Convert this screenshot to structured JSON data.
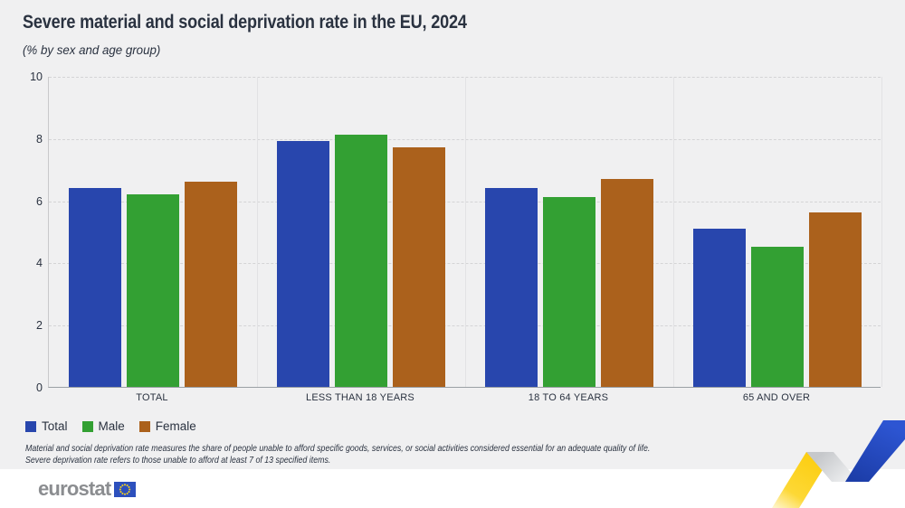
{
  "header": {
    "title": "Severe material and social deprivation rate in the EU, 2024",
    "subtitle": "(% by sex and age group)"
  },
  "chart_data": {
    "type": "bar",
    "categories": [
      "TOTAL",
      "LESS THAN 18 YEARS",
      "18 TO 64 YEARS",
      "65 AND OVER"
    ],
    "series": [
      {
        "name": "Total",
        "color": "#2846ad",
        "values": [
          6.4,
          7.9,
          6.4,
          5.1
        ]
      },
      {
        "name": "Male",
        "color": "#33a033",
        "values": [
          6.2,
          8.1,
          6.1,
          4.5
        ]
      },
      {
        "name": "Female",
        "color": "#ab611c",
        "values": [
          6.6,
          7.7,
          6.7,
          5.6
        ]
      }
    ],
    "ylim": [
      0,
      10
    ],
    "yticks": [
      0,
      2,
      4,
      6,
      8,
      10
    ],
    "grid": "horizontal dashed gridlines, light vertical category separators",
    "legend_position": "bottom-left",
    "xlabel": "",
    "ylabel": ""
  },
  "footnotes": {
    "line1": "Material and social deprivation rate measures the share of people unable to afford specific goods, services, or social activities considered essential for an adequate quality of life.",
    "line2": "Severe deprivation rate refers to those unable to afford at least 7 of 13 specified items."
  },
  "footer": {
    "logo_text": "eurostat",
    "eu_flag_icon": "eu-flag-icon"
  },
  "colors": {
    "background": "#f0f0f1",
    "footer_background": "#ffffff",
    "text": "#2a3240",
    "grid": "#d4d4d6",
    "axis": "#9ba0a5",
    "logo_gray": "#8b8d90",
    "flag_blue": "#2d50bd",
    "star_yellow": "#ffd617",
    "ribbon_yellow": "#fccd0f",
    "ribbon_gray": "#c6c8cb",
    "ribbon_blue": "#2147c5"
  }
}
